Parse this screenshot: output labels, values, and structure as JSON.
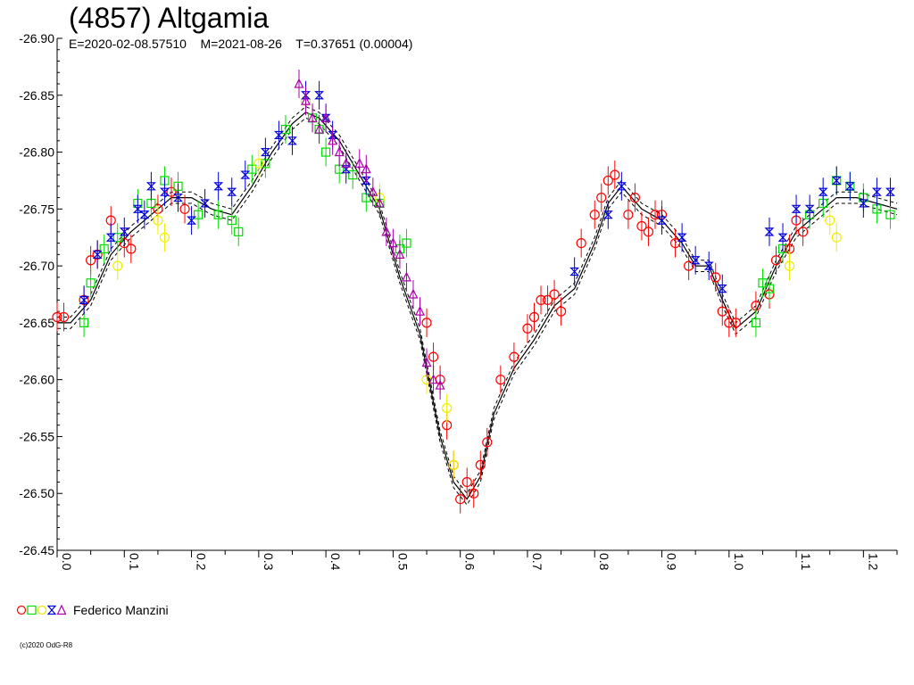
{
  "chart_data": {
    "type": "scatter",
    "title": "(4857) Altgamia",
    "subtitle": "E=2020-02-08.57510    M=2021-08-26    T=0.37651 (0.00004)",
    "x_ticks": [
      "0.0",
      "0.1",
      "0.2",
      "0.3",
      "0.4",
      "0.5",
      "0.6",
      "0.7",
      "0.8",
      "0.9",
      "1.0",
      "1.1",
      "1.2"
    ],
    "y_ticks": [
      "-26.90",
      "-26.85",
      "-26.80",
      "-26.75",
      "-26.70",
      "-26.65",
      "-26.60",
      "-26.55",
      "-26.50",
      "-26.45"
    ],
    "xlim": [
      0.0,
      1.25
    ],
    "ylim": [
      -26.9,
      -26.45
    ],
    "y_inverted": true,
    "grid": false,
    "legend": "bottom-left",
    "legend_label": "Federico Manzini",
    "model_curve": {
      "x": [
        0.0,
        0.02,
        0.05,
        0.08,
        0.11,
        0.14,
        0.17,
        0.2,
        0.23,
        0.26,
        0.29,
        0.32,
        0.35,
        0.37,
        0.39,
        0.42,
        0.45,
        0.48,
        0.51,
        0.54,
        0.57,
        0.59,
        0.61,
        0.63,
        0.65,
        0.68,
        0.71,
        0.74,
        0.77,
        0.8,
        0.82,
        0.84,
        0.87,
        0.9,
        0.93,
        0.95,
        0.97,
        0.99,
        1.01,
        1.04,
        1.07,
        1.1,
        1.13,
        1.16,
        1.19,
        1.22,
        1.25
      ],
      "y": [
        -26.65,
        -26.65,
        -26.67,
        -26.71,
        -26.73,
        -26.745,
        -26.76,
        -26.76,
        -26.75,
        -26.745,
        -26.77,
        -26.8,
        -26.825,
        -26.835,
        -26.83,
        -26.81,
        -26.78,
        -26.75,
        -26.69,
        -26.64,
        -26.55,
        -26.51,
        -26.495,
        -26.515,
        -26.57,
        -26.61,
        -26.635,
        -26.665,
        -26.68,
        -26.72,
        -26.755,
        -26.77,
        -26.75,
        -26.74,
        -26.72,
        -26.7,
        -26.7,
        -26.67,
        -26.645,
        -26.66,
        -26.7,
        -26.73,
        -26.745,
        -26.76,
        -26.76,
        -26.755,
        -26.75
      ],
      "band": 0.005
    },
    "series": [
      {
        "color": "#ff0000",
        "marker": "circle",
        "x": [
          0.0,
          0.01,
          0.04,
          0.05,
          0.06,
          0.08,
          0.1,
          0.11,
          0.15,
          0.17,
          0.19,
          0.55,
          0.56,
          0.57,
          0.58,
          0.59,
          0.6,
          0.61,
          0.62,
          0.63,
          0.64,
          0.66,
          0.68,
          0.7,
          0.71,
          0.72,
          0.73,
          0.74,
          0.75,
          0.78,
          0.8,
          0.81,
          0.82,
          0.83,
          0.85,
          0.86,
          0.87,
          0.88,
          0.89,
          0.9,
          0.92,
          0.94,
          0.98,
          0.99,
          1.0,
          1.01,
          1.04,
          1.06,
          1.07,
          1.09,
          1.1,
          1.11
        ],
        "y": [
          -26.655,
          -26.655,
          -26.67,
          -26.705,
          -26.71,
          -26.74,
          -26.72,
          -26.715,
          -26.75,
          -26.765,
          -26.75,
          -26.65,
          -26.62,
          -26.6,
          -26.56,
          -26.525,
          -26.495,
          -26.51,
          -26.5,
          -26.525,
          -26.545,
          -26.6,
          -26.62,
          -26.645,
          -26.655,
          -26.67,
          -26.67,
          -26.675,
          -26.66,
          -26.72,
          -26.745,
          -26.76,
          -26.775,
          -26.78,
          -26.745,
          -26.76,
          -26.735,
          -26.73,
          -26.745,
          -26.745,
          -26.72,
          -26.7,
          -26.69,
          -26.66,
          -26.65,
          -26.65,
          -26.665,
          -26.675,
          -26.705,
          -26.715,
          -26.74,
          -26.73
        ]
      },
      {
        "color": "#00dd00",
        "marker": "square",
        "x": [
          0.04,
          0.05,
          0.07,
          0.09,
          0.12,
          0.14,
          0.16,
          0.18,
          0.21,
          0.24,
          0.26,
          0.27,
          0.29,
          0.31,
          0.34,
          0.38,
          0.39,
          0.4,
          0.42,
          0.44,
          0.46,
          0.48,
          0.51,
          0.52,
          1.04,
          1.05,
          1.06,
          1.08,
          1.12,
          1.14,
          1.16,
          1.18,
          1.2,
          1.22,
          1.24
        ],
        "y": [
          -26.65,
          -26.685,
          -26.715,
          -26.725,
          -26.755,
          -26.755,
          -26.775,
          -26.77,
          -26.745,
          -26.745,
          -26.74,
          -26.73,
          -26.785,
          -26.79,
          -26.82,
          -26.83,
          -26.82,
          -26.8,
          -26.785,
          -26.78,
          -26.76,
          -26.755,
          -26.715,
          -26.72,
          -26.65,
          -26.685,
          -26.68,
          -26.715,
          -26.745,
          -26.755,
          -26.775,
          -26.77,
          -26.76,
          -26.75,
          -26.745
        ]
      },
      {
        "color": "#ffff00",
        "marker": "circle",
        "x": [
          0.09,
          0.15,
          0.16,
          0.3,
          0.37,
          0.48,
          0.55,
          0.58,
          0.59,
          1.09,
          1.15,
          1.16
        ],
        "y": [
          -26.7,
          -26.74,
          -26.725,
          -26.79,
          -26.845,
          -26.76,
          -26.6,
          -26.575,
          -26.525,
          -26.7,
          -26.74,
          -26.725
        ]
      },
      {
        "color": "#0000dd",
        "marker": "hourglass",
        "x": [
          0.04,
          0.06,
          0.08,
          0.1,
          0.12,
          0.13,
          0.14,
          0.16,
          0.18,
          0.2,
          0.22,
          0.24,
          0.26,
          0.28,
          0.31,
          0.33,
          0.35,
          0.37,
          0.39,
          0.4,
          0.41,
          0.43,
          0.46,
          0.77,
          0.82,
          0.84,
          0.9,
          0.93,
          0.95,
          0.97,
          0.99,
          1.06,
          1.08,
          1.1,
          1.12,
          1.14,
          1.16,
          1.18,
          1.2,
          1.22,
          1.24
        ],
        "y": [
          -26.67,
          -26.71,
          -26.725,
          -26.73,
          -26.75,
          -26.745,
          -26.77,
          -26.765,
          -26.76,
          -26.74,
          -26.755,
          -26.77,
          -26.765,
          -26.78,
          -26.8,
          -26.815,
          -26.81,
          -26.85,
          -26.85,
          -26.83,
          -26.815,
          -26.785,
          -26.775,
          -26.695,
          -26.745,
          -26.77,
          -26.74,
          -26.725,
          -26.705,
          -26.7,
          -26.68,
          -26.73,
          -26.725,
          -26.75,
          -26.75,
          -26.765,
          -26.775,
          -26.77,
          -26.755,
          -26.765,
          -26.765
        ]
      },
      {
        "color": "#aa00aa",
        "marker": "triangle",
        "x": [
          0.36,
          0.37,
          0.38,
          0.39,
          0.4,
          0.41,
          0.42,
          0.43,
          0.45,
          0.46,
          0.47,
          0.48,
          0.49,
          0.5,
          0.51,
          0.52,
          0.53,
          0.54,
          0.55,
          0.56,
          0.57
        ],
        "y": [
          -26.86,
          -26.845,
          -26.83,
          -26.82,
          -26.83,
          -26.81,
          -26.8,
          -26.79,
          -26.79,
          -26.785,
          -26.765,
          -26.755,
          -26.73,
          -26.72,
          -26.71,
          -26.69,
          -26.675,
          -26.66,
          -26.615,
          -26.6,
          -26.595
        ]
      }
    ]
  },
  "legend": {
    "label": "Federico Manzini"
  },
  "copyright": "(c)2020 OdG-R8"
}
